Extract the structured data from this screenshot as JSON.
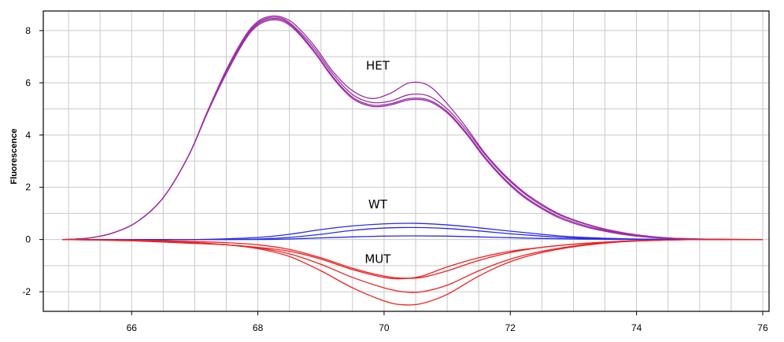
{
  "chart_data": {
    "type": "line",
    "title": "",
    "xlabel": "",
    "ylabel": "Fluorescence",
    "xlim": [
      64.6,
      76.1
    ],
    "ylim": [
      -2.75,
      8.75
    ],
    "grid": true,
    "x_ticks": [
      66,
      68,
      70,
      72,
      74,
      76
    ],
    "y_ticks": [
      -2,
      0,
      2,
      4,
      6,
      8
    ],
    "colors": {
      "HET": "#9b30a6",
      "WT": "#2a2ae8",
      "MUT": "#ee2222",
      "grid": "#c9c9c9",
      "axis": "#000000"
    },
    "annotations": [
      {
        "text": "HET",
        "x": 69.9,
        "y": 6.5
      },
      {
        "text": "WT",
        "x": 69.9,
        "y": 1.2
      },
      {
        "text": "MUT",
        "x": 69.9,
        "y": -0.9
      }
    ],
    "series": [
      {
        "group": "HET",
        "x": [
          64.9,
          65.3,
          65.7,
          66.1,
          66.5,
          66.9,
          67.2,
          67.5,
          67.8,
          68.0,
          68.2,
          68.4,
          68.6,
          68.9,
          69.2,
          69.5,
          69.8,
          70.1,
          70.4,
          70.7,
          71.0,
          71.3,
          71.6,
          71.9,
          72.2,
          72.5,
          72.8,
          73.2,
          73.6,
          74.0,
          74.5,
          75.0,
          75.5,
          76.0
        ],
        "y": [
          0,
          0.05,
          0.25,
          0.7,
          1.6,
          3.2,
          4.9,
          6.5,
          7.8,
          8.35,
          8.55,
          8.5,
          8.2,
          7.4,
          6.4,
          5.7,
          5.4,
          5.6,
          6.0,
          5.9,
          5.2,
          4.3,
          3.3,
          2.5,
          1.85,
          1.35,
          0.95,
          0.6,
          0.35,
          0.18,
          0.06,
          0.02,
          0,
          0
        ]
      },
      {
        "group": "HET",
        "x": [
          64.9,
          65.3,
          65.7,
          66.1,
          66.5,
          66.9,
          67.2,
          67.5,
          67.8,
          68.0,
          68.2,
          68.4,
          68.6,
          68.9,
          69.2,
          69.5,
          69.8,
          70.1,
          70.4,
          70.7,
          71.0,
          71.3,
          71.6,
          71.9,
          72.2,
          72.5,
          72.8,
          73.2,
          73.6,
          74.0,
          74.5,
          75.0,
          75.5,
          76.0
        ],
        "y": [
          0,
          0.05,
          0.25,
          0.7,
          1.6,
          3.2,
          4.9,
          6.45,
          7.75,
          8.3,
          8.5,
          8.45,
          8.1,
          7.3,
          6.3,
          5.55,
          5.25,
          5.3,
          5.55,
          5.5,
          5.0,
          4.2,
          3.25,
          2.45,
          1.8,
          1.3,
          0.92,
          0.58,
          0.33,
          0.17,
          0.06,
          0.02,
          0,
          0
        ]
      },
      {
        "group": "HET",
        "x": [
          64.9,
          65.3,
          65.7,
          66.1,
          66.5,
          66.9,
          67.2,
          67.5,
          67.8,
          68.0,
          68.2,
          68.4,
          68.6,
          68.9,
          69.2,
          69.5,
          69.8,
          70.1,
          70.4,
          70.7,
          71.0,
          71.3,
          71.6,
          71.9,
          72.2,
          72.5,
          72.8,
          73.2,
          73.6,
          74.0,
          74.5,
          75.0,
          75.5,
          76.0
        ],
        "y": [
          0,
          0.05,
          0.25,
          0.7,
          1.6,
          3.2,
          4.85,
          6.4,
          7.7,
          8.25,
          8.45,
          8.4,
          8.05,
          7.2,
          6.2,
          5.45,
          5.15,
          5.2,
          5.4,
          5.35,
          4.9,
          4.1,
          3.15,
          2.35,
          1.7,
          1.22,
          0.85,
          0.52,
          0.3,
          0.15,
          0.05,
          0.01,
          0,
          0
        ]
      },
      {
        "group": "HET",
        "x": [
          64.9,
          65.3,
          65.7,
          66.1,
          66.5,
          66.9,
          67.2,
          67.5,
          67.8,
          68.0,
          68.2,
          68.4,
          68.6,
          68.9,
          69.2,
          69.5,
          69.8,
          70.1,
          70.4,
          70.7,
          71.0,
          71.3,
          71.6,
          71.9,
          72.2,
          72.5,
          72.8,
          73.2,
          73.6,
          74.0,
          74.5,
          75.0,
          75.5,
          76.0
        ],
        "y": [
          0,
          0.05,
          0.25,
          0.7,
          1.6,
          3.2,
          4.85,
          6.35,
          7.65,
          8.2,
          8.4,
          8.35,
          8.0,
          7.15,
          6.15,
          5.4,
          5.1,
          5.15,
          5.35,
          5.3,
          4.85,
          4.05,
          3.1,
          2.3,
          1.65,
          1.18,
          0.8,
          0.48,
          0.27,
          0.13,
          0.04,
          0.01,
          0,
          0
        ]
      },
      {
        "group": "WT",
        "x": [
          64.9,
          66.0,
          67.0,
          68.0,
          68.5,
          69.0,
          69.5,
          70.0,
          70.5,
          71.0,
          71.5,
          72.0,
          72.5,
          73.0,
          73.5,
          74.0,
          75.0,
          76.0
        ],
        "y": [
          0,
          0,
          0,
          0.08,
          0.2,
          0.38,
          0.52,
          0.6,
          0.62,
          0.56,
          0.45,
          0.32,
          0.2,
          0.1,
          0.05,
          0.02,
          0,
          0
        ]
      },
      {
        "group": "WT",
        "x": [
          64.9,
          66.0,
          67.0,
          68.0,
          68.5,
          69.0,
          69.5,
          70.0,
          70.5,
          71.0,
          71.5,
          72.0,
          72.5,
          73.0,
          73.5,
          74.0,
          75.0,
          76.0
        ],
        "y": [
          0,
          0,
          0,
          0.02,
          0.08,
          0.2,
          0.35,
          0.44,
          0.46,
          0.42,
          0.33,
          0.22,
          0.13,
          0.06,
          0.03,
          0.01,
          0,
          0
        ]
      },
      {
        "group": "WT",
        "x": [
          64.9,
          66.0,
          67.0,
          68.0,
          68.5,
          69.0,
          69.5,
          70.0,
          70.5,
          71.0,
          71.5,
          72.0,
          72.5,
          73.0,
          73.5,
          74.0,
          75.0,
          76.0
        ],
        "y": [
          0,
          0,
          0,
          0,
          0.02,
          0.06,
          0.1,
          0.13,
          0.14,
          0.13,
          0.1,
          0.07,
          0.04,
          0.02,
          0.01,
          0,
          0,
          0
        ]
      },
      {
        "group": "MUT",
        "x": [
          64.9,
          66.0,
          67.0,
          67.5,
          68.0,
          68.5,
          69.0,
          69.5,
          70.0,
          70.3,
          70.6,
          71.0,
          71.5,
          72.0,
          72.5,
          73.0,
          73.5,
          74.0,
          75.0,
          76.0
        ],
        "y": [
          0,
          -0.05,
          -0.15,
          -0.2,
          -0.3,
          -0.45,
          -0.75,
          -1.15,
          -1.45,
          -1.5,
          -1.4,
          -1.05,
          -0.7,
          -0.45,
          -0.3,
          -0.18,
          -0.1,
          -0.05,
          0,
          0
        ]
      },
      {
        "group": "MUT",
        "x": [
          64.9,
          66.0,
          67.0,
          67.5,
          68.0,
          68.5,
          69.0,
          69.5,
          70.0,
          70.3,
          70.6,
          71.0,
          71.5,
          72.0,
          72.5,
          73.0,
          73.5,
          74.0,
          75.0,
          76.0
        ],
        "y": [
          0,
          -0.02,
          -0.08,
          -0.12,
          -0.2,
          -0.38,
          -0.7,
          -1.1,
          -1.4,
          -1.48,
          -1.45,
          -1.2,
          -0.8,
          -0.5,
          -0.3,
          -0.18,
          -0.1,
          -0.04,
          0,
          0
        ]
      },
      {
        "group": "MUT",
        "x": [
          64.9,
          66.0,
          67.0,
          67.5,
          68.0,
          68.5,
          69.0,
          69.5,
          70.0,
          70.3,
          70.6,
          71.0,
          71.5,
          72.0,
          72.5,
          73.0,
          73.5,
          74.0,
          75.0,
          76.0
        ],
        "y": [
          0,
          -0.03,
          -0.12,
          -0.2,
          -0.32,
          -0.55,
          -0.95,
          -1.45,
          -1.85,
          -2.0,
          -2.0,
          -1.75,
          -1.2,
          -0.75,
          -0.45,
          -0.25,
          -0.12,
          -0.05,
          0,
          0
        ]
      },
      {
        "group": "MUT",
        "x": [
          64.9,
          66.0,
          67.0,
          67.5,
          68.0,
          68.5,
          69.0,
          69.5,
          70.0,
          70.3,
          70.6,
          71.0,
          71.5,
          72.0,
          72.5,
          73.0,
          73.5,
          74.0,
          75.0,
          76.0
        ],
        "y": [
          0,
          -0.03,
          -0.12,
          -0.2,
          -0.35,
          -0.65,
          -1.2,
          -1.85,
          -2.35,
          -2.5,
          -2.45,
          -2.1,
          -1.4,
          -0.85,
          -0.5,
          -0.28,
          -0.14,
          -0.06,
          0,
          0
        ]
      }
    ]
  }
}
